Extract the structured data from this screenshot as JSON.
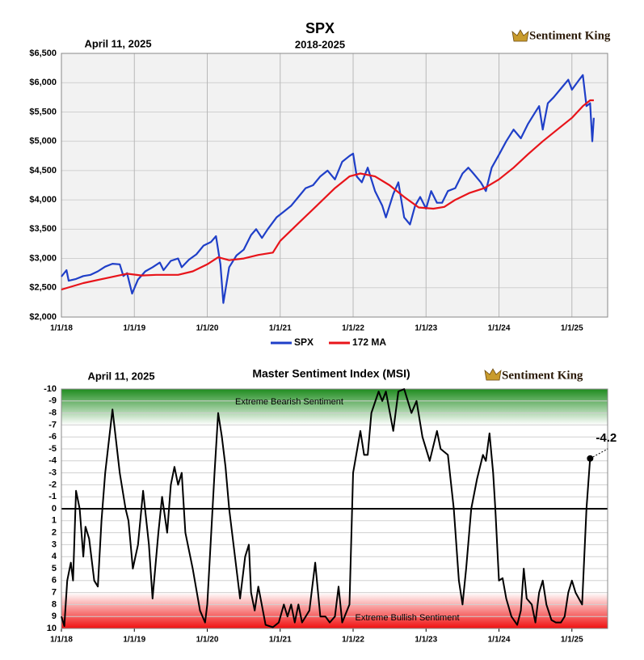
{
  "chart_data": [
    {
      "type": "line",
      "title": "SPX",
      "subtitle": "2018-2025",
      "date": "April 11, 2025",
      "logo": "Sentiment King",
      "xlim": [
        2018,
        2025.49
      ],
      "xticks": [
        {
          "value": 2018,
          "label": "1/1/18"
        },
        {
          "value": 2019,
          "label": "1/1/19"
        },
        {
          "value": 2020,
          "label": "1/1/20"
        },
        {
          "value": 2021,
          "label": "1/1/21"
        },
        {
          "value": 2022,
          "label": "1/1/22"
        },
        {
          "value": 2023,
          "label": "1/1/23"
        },
        {
          "value": 2024,
          "label": "1/1/24"
        },
        {
          "value": 2025,
          "label": "1/1/25"
        }
      ],
      "ylim": [
        2000,
        6500
      ],
      "yticks": [
        {
          "value": 2000,
          "label": "$2,000"
        },
        {
          "value": 2500,
          "label": "$2,500"
        },
        {
          "value": 3000,
          "label": "$3,000"
        },
        {
          "value": 3500,
          "label": "$3,500"
        },
        {
          "value": 4000,
          "label": "$4,000"
        },
        {
          "value": 4500,
          "label": "$4,500"
        },
        {
          "value": 5000,
          "label": "$5,000"
        },
        {
          "value": 5500,
          "label": "$5,500"
        },
        {
          "value": 6000,
          "label": "$6,000"
        },
        {
          "value": 6500,
          "label": "$6,500"
        }
      ],
      "grid": true,
      "series": [
        {
          "name": "SPX",
          "color": "#1f3fc8",
          "x": [
            2018.0,
            2018.07,
            2018.1,
            2018.2,
            2018.3,
            2018.4,
            2018.5,
            2018.6,
            2018.7,
            2018.8,
            2018.85,
            2018.9,
            2018.97,
            2019.05,
            2019.15,
            2019.25,
            2019.35,
            2019.4,
            2019.5,
            2019.6,
            2019.65,
            2019.75,
            2019.85,
            2019.95,
            2020.05,
            2020.12,
            2020.18,
            2020.22,
            2020.3,
            2020.4,
            2020.5,
            2020.6,
            2020.67,
            2020.75,
            2020.83,
            2020.95,
            2021.05,
            2021.15,
            2021.25,
            2021.35,
            2021.45,
            2021.55,
            2021.65,
            2021.75,
            2021.85,
            2021.95,
            2022.0,
            2022.05,
            2022.12,
            2022.2,
            2022.3,
            2022.4,
            2022.45,
            2022.55,
            2022.62,
            2022.7,
            2022.78,
            2022.85,
            2022.92,
            2023.0,
            2023.07,
            2023.15,
            2023.22,
            2023.3,
            2023.4,
            2023.5,
            2023.58,
            2023.65,
            2023.75,
            2023.82,
            2023.9,
            2024.0,
            2024.1,
            2024.2,
            2024.3,
            2024.4,
            2024.5,
            2024.55,
            2024.6,
            2024.67,
            2024.75,
            2024.85,
            2024.95,
            2025.0,
            2025.1,
            2025.15,
            2025.2,
            2025.25,
            2025.28,
            2025.3
          ],
          "values": [
            2690,
            2800,
            2620,
            2650,
            2700,
            2720,
            2780,
            2860,
            2910,
            2900,
            2700,
            2750,
            2400,
            2640,
            2780,
            2850,
            2930,
            2800,
            2960,
            3000,
            2850,
            2980,
            3070,
            3220,
            3280,
            3380,
            2900,
            2240,
            2850,
            3050,
            3150,
            3400,
            3500,
            3350,
            3500,
            3700,
            3800,
            3900,
            4050,
            4200,
            4250,
            4400,
            4500,
            4350,
            4650,
            4750,
            4790,
            4400,
            4300,
            4550,
            4150,
            3900,
            3700,
            4100,
            4300,
            3700,
            3580,
            3900,
            4050,
            3850,
            4150,
            3950,
            3950,
            4150,
            4200,
            4450,
            4550,
            4450,
            4300,
            4150,
            4550,
            4770,
            5000,
            5200,
            5050,
            5300,
            5500,
            5600,
            5200,
            5650,
            5750,
            5900,
            6050,
            5880,
            6050,
            6130,
            5600,
            5650,
            5000,
            5400
          ]
        },
        {
          "name": "172 MA",
          "color": "#e8141a",
          "x": [
            2018.0,
            2018.3,
            2018.6,
            2018.9,
            2019.1,
            2019.3,
            2019.6,
            2019.8,
            2020.0,
            2020.15,
            2020.3,
            2020.5,
            2020.7,
            2020.9,
            2021.0,
            2021.25,
            2021.5,
            2021.75,
            2021.95,
            2022.1,
            2022.3,
            2022.5,
            2022.7,
            2022.9,
            2023.1,
            2023.25,
            2023.4,
            2023.6,
            2023.8,
            2024.0,
            2024.2,
            2024.4,
            2024.6,
            2024.8,
            2025.0,
            2025.15,
            2025.25,
            2025.3
          ],
          "values": [
            2470,
            2580,
            2660,
            2740,
            2710,
            2720,
            2720,
            2780,
            2900,
            3020,
            2970,
            3000,
            3060,
            3100,
            3300,
            3600,
            3900,
            4200,
            4400,
            4450,
            4400,
            4250,
            4050,
            3870,
            3850,
            3880,
            4000,
            4120,
            4200,
            4350,
            4550,
            4780,
            5000,
            5200,
            5400,
            5600,
            5700,
            5700
          ]
        }
      ]
    },
    {
      "type": "line",
      "title": "Master Sentiment Index (MSI)",
      "date": "April 11, 2025",
      "logo": "Sentiment King",
      "xlim": [
        2018,
        2025.49
      ],
      "xticks": [
        {
          "value": 2018,
          "label": "1/1/18"
        },
        {
          "value": 2019,
          "label": "1/1/19"
        },
        {
          "value": 2020,
          "label": "1/1/20"
        },
        {
          "value": 2021,
          "label": "1/1/21"
        },
        {
          "value": 2022,
          "label": "1/1/22"
        },
        {
          "value": 2023,
          "label": "1/1/23"
        },
        {
          "value": 2024,
          "label": "1/1/24"
        },
        {
          "value": 2025,
          "label": "1/1/25"
        }
      ],
      "ylim": [
        -10,
        10
      ],
      "y_inverted": true,
      "yticks": [
        -10,
        -9,
        -8,
        -7,
        -6,
        -5,
        -4,
        -3,
        -2,
        -1,
        0,
        1,
        2,
        3,
        4,
        5,
        6,
        7,
        8,
        9,
        10
      ],
      "grid": true,
      "bands": [
        {
          "label": "Extreme Bearish Sentiment",
          "range": [
            -10,
            -7
          ],
          "color": "#1e8c1e"
        },
        {
          "label": "Extreme Bullish Sentiment",
          "range": [
            7,
            10
          ],
          "color": "#f01010"
        }
      ],
      "series": [
        {
          "color": "#000000",
          "x": [
            2018.0,
            2018.04,
            2018.08,
            2018.13,
            2018.16,
            2018.2,
            2018.25,
            2018.3,
            2018.33,
            2018.38,
            2018.45,
            2018.5,
            2018.55,
            2018.6,
            2018.7,
            2018.8,
            2018.88,
            2018.92,
            2018.98,
            2019.05,
            2019.12,
            2019.2,
            2019.25,
            2019.33,
            2019.38,
            2019.45,
            2019.5,
            2019.55,
            2019.6,
            2019.65,
            2019.7,
            2019.8,
            2019.9,
            2019.97,
            2020.0,
            2020.1,
            2020.15,
            2020.2,
            2020.25,
            2020.3,
            2020.4,
            2020.45,
            2020.52,
            2020.57,
            2020.6,
            2020.65,
            2020.7,
            2020.8,
            2020.9,
            2020.98,
            2021.05,
            2021.1,
            2021.15,
            2021.2,
            2021.25,
            2021.3,
            2021.4,
            2021.48,
            2021.55,
            2021.62,
            2021.68,
            2021.75,
            2021.8,
            2021.85,
            2021.95,
            2022.0,
            2022.1,
            2022.15,
            2022.2,
            2022.25,
            2022.35,
            2022.4,
            2022.45,
            2022.55,
            2022.62,
            2022.7,
            2022.8,
            2022.87,
            2022.95,
            2023.05,
            2023.15,
            2023.2,
            2023.3,
            2023.38,
            2023.45,
            2023.5,
            2023.55,
            2023.62,
            2023.7,
            2023.78,
            2023.82,
            2023.87,
            2023.92,
            2023.95,
            2024.0,
            2024.05,
            2024.1,
            2024.17,
            2024.25,
            2024.3,
            2024.34,
            2024.38,
            2024.45,
            2024.5,
            2024.55,
            2024.6,
            2024.65,
            2024.72,
            2024.78,
            2024.85,
            2024.9,
            2024.95,
            2025.0,
            2025.05,
            2025.14,
            2025.2,
            2025.25
          ],
          "values": [
            9,
            9.8,
            6,
            4.5,
            6,
            -1.5,
            0,
            4,
            1.5,
            2.5,
            6,
            6.5,
            1,
            -3,
            -8.3,
            -3,
            0,
            1,
            5,
            3,
            -1.5,
            3,
            7.5,
            2,
            -1,
            2,
            -2,
            -3.5,
            -2,
            -3,
            2,
            5,
            8.5,
            9.5,
            8,
            -3,
            -8,
            -6,
            -3.5,
            0,
            5,
            7.5,
            4,
            3,
            7,
            8.5,
            6.5,
            9.7,
            9.9,
            9.5,
            8,
            9,
            8,
            9.5,
            8,
            9.5,
            8.5,
            4.5,
            9,
            9,
            9.5,
            9,
            6.5,
            9.5,
            8,
            -3,
            -6.5,
            -4.5,
            -4.5,
            -8,
            -9.8,
            -9,
            -9.8,
            -6.5,
            -9.8,
            -10,
            -8,
            -9,
            -6,
            -4,
            -6.5,
            -5,
            -4.5,
            0,
            6,
            8,
            5,
            0,
            -2.5,
            -4.5,
            -4,
            -6.3,
            -3,
            0,
            6,
            5.8,
            7.5,
            9,
            9.7,
            8.5,
            5,
            7.5,
            8,
            9.5,
            7,
            6,
            8,
            9.3,
            9.5,
            9.5,
            9,
            7,
            6,
            7,
            8,
            0,
            -4.2
          ]
        }
      ]
    }
  ]
}
